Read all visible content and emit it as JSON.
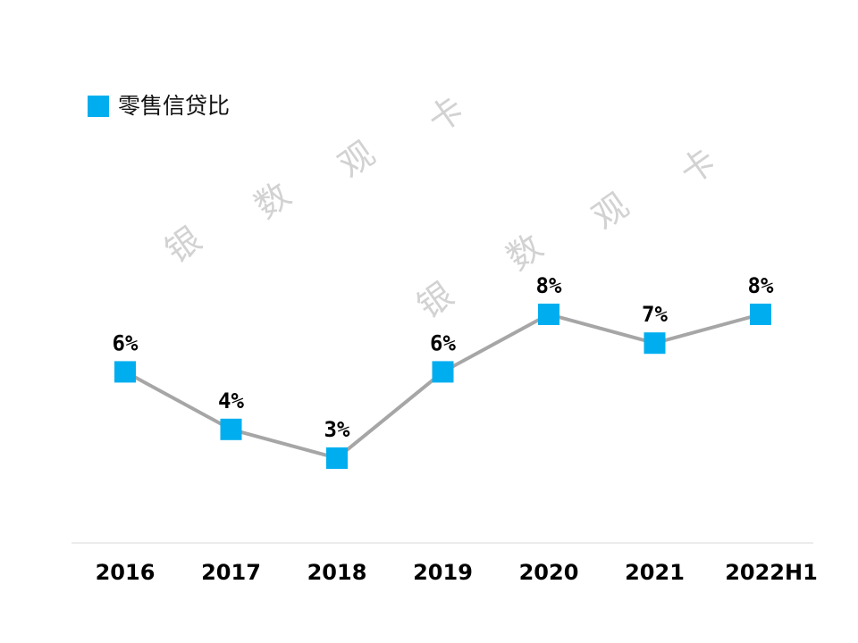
{
  "chart_data": {
    "type": "line",
    "categories": [
      "2016",
      "2017",
      "2018",
      "2019",
      "2020",
      "2021",
      "2022H1"
    ],
    "series": [
      {
        "name": "零售信贷比",
        "values": [
          6,
          4,
          3,
          6,
          8,
          7,
          8
        ],
        "data_labels": [
          "6%",
          "4%",
          "3%",
          "6%",
          "8%",
          "7%",
          "8%"
        ]
      }
    ],
    "title": "",
    "xlabel": "",
    "ylabel": "",
    "legend_position": "top-left",
    "grid": false
  },
  "legend": {
    "label": "零售信贷比"
  },
  "watermark": {
    "chars": [
      "银",
      "数",
      "观",
      "卡"
    ]
  },
  "colors": {
    "marker": "#00AEEF",
    "line": "#A6A6A6",
    "axis": "#D9D9D9",
    "watermark": "#D2D2D2"
  }
}
